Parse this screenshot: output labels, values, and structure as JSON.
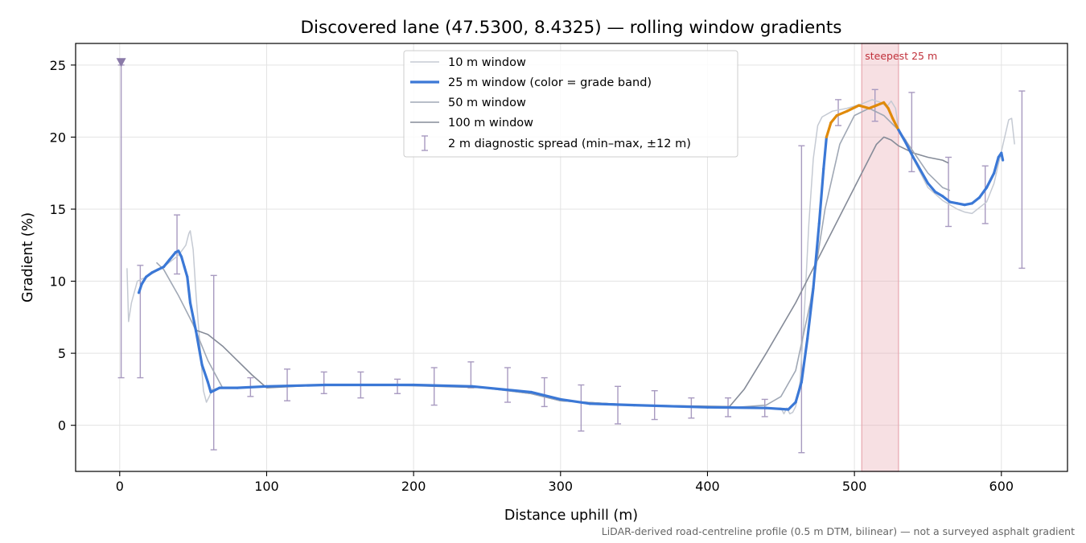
{
  "chart_data": {
    "type": "line",
    "title": "Discovered lane (47.5300, 8.4325) — rolling window gradients",
    "xlabel": "Distance uphill (m)",
    "ylabel": "Gradient (%)",
    "xlim": [
      -30,
      645
    ],
    "ylim": [
      -3.2,
      26.5
    ],
    "xticks": [
      0,
      100,
      200,
      300,
      400,
      500,
      600
    ],
    "yticks": [
      0,
      5,
      10,
      15,
      20,
      25
    ],
    "grid": true,
    "legend_position": "top-center",
    "footnote": "LiDAR-derived road-centreline profile (0.5 m DTM, bilinear) — not a surveyed asphalt gradient",
    "annotation": {
      "label": "steepest 25 m",
      "x_range": [
        505,
        530
      ],
      "color": "#e8a6ae"
    },
    "marker": {
      "x": 1,
      "y": 25.2,
      "symbol": "down-triangle",
      "color": "#8a7aa8"
    },
    "grade_band_colors": {
      "lower": "#3b78d6",
      "steep": "#e08a0a"
    },
    "series": [
      {
        "name": "10 m window",
        "color": "#c5cad3",
        "points": [
          [
            5,
            10.9
          ],
          [
            6,
            7.2
          ],
          [
            8,
            8.5
          ],
          [
            12,
            10.0
          ],
          [
            20,
            10.4
          ],
          [
            30,
            11.0
          ],
          [
            40,
            11.8
          ],
          [
            45,
            12.5
          ],
          [
            47,
            13.3
          ],
          [
            48,
            13.5
          ],
          [
            50,
            12.2
          ],
          [
            52,
            9.0
          ],
          [
            55,
            5.0
          ],
          [
            57,
            2.4
          ],
          [
            59,
            1.6
          ],
          [
            61,
            2.0
          ],
          [
            63,
            2.5
          ],
          [
            70,
            2.6
          ],
          [
            80,
            2.6
          ],
          [
            100,
            2.7
          ],
          [
            140,
            2.8
          ],
          [
            200,
            2.8
          ],
          [
            240,
            2.7
          ],
          [
            280,
            2.2
          ],
          [
            300,
            1.7
          ],
          [
            350,
            1.4
          ],
          [
            400,
            1.3
          ],
          [
            440,
            1.2
          ],
          [
            450,
            1.2
          ],
          [
            452,
            0.8
          ],
          [
            454,
            1.2
          ],
          [
            456,
            0.8
          ],
          [
            458,
            0.9
          ],
          [
            460,
            1.3
          ],
          [
            463,
            3.0
          ],
          [
            466,
            8.0
          ],
          [
            469,
            14.0
          ],
          [
            472,
            18.5
          ],
          [
            475,
            20.8
          ],
          [
            478,
            21.4
          ],
          [
            485,
            21.8
          ],
          [
            495,
            22.0
          ],
          [
            505,
            22.3
          ],
          [
            512,
            22.6
          ],
          [
            518,
            22.4
          ],
          [
            522,
            22.1
          ],
          [
            525,
            22.5
          ],
          [
            528,
            22.0
          ],
          [
            530,
            20.5
          ],
          [
            535,
            19.8
          ],
          [
            540,
            18.5
          ],
          [
            545,
            17.5
          ],
          [
            550,
            16.5
          ],
          [
            560,
            15.6
          ],
          [
            570,
            15.0
          ],
          [
            575,
            14.8
          ],
          [
            580,
            14.7
          ],
          [
            590,
            15.5
          ],
          [
            595,
            16.8
          ],
          [
            600,
            19.0
          ],
          [
            605,
            21.2
          ],
          [
            607,
            21.3
          ],
          [
            609,
            19.5
          ]
        ]
      },
      {
        "name": "25 m window (color = grade band)",
        "color": "#3b78d6",
        "points": [
          [
            13,
            9.2
          ],
          [
            15,
            9.8
          ],
          [
            18,
            10.3
          ],
          [
            22,
            10.6
          ],
          [
            26,
            10.8
          ],
          [
            30,
            11.0
          ],
          [
            34,
            11.5
          ],
          [
            38,
            12.0
          ],
          [
            40,
            12.1
          ],
          [
            42,
            11.7
          ],
          [
            44,
            11.0
          ],
          [
            46,
            10.3
          ],
          [
            48,
            8.5
          ],
          [
            52,
            6.5
          ],
          [
            56,
            4.2
          ],
          [
            60,
            3.0
          ],
          [
            62,
            2.3
          ],
          [
            64,
            2.4
          ],
          [
            68,
            2.6
          ],
          [
            80,
            2.6
          ],
          [
            100,
            2.7
          ],
          [
            140,
            2.8
          ],
          [
            200,
            2.8
          ],
          [
            240,
            2.7
          ],
          [
            280,
            2.3
          ],
          [
            300,
            1.8
          ],
          [
            320,
            1.5
          ],
          [
            350,
            1.4
          ],
          [
            400,
            1.25
          ],
          [
            440,
            1.2
          ],
          [
            455,
            1.1
          ],
          [
            460,
            1.6
          ],
          [
            464,
            3.0
          ],
          [
            468,
            6.0
          ],
          [
            472,
            9.5
          ],
          [
            476,
            14.0
          ],
          [
            479,
            17.8
          ],
          [
            481,
            20.0
          ],
          [
            484,
            21.0
          ],
          [
            488,
            21.5
          ],
          [
            495,
            21.8
          ],
          [
            503,
            22.2
          ],
          [
            510,
            22.0
          ],
          [
            515,
            22.2
          ],
          [
            520,
            22.4
          ],
          [
            523,
            22.0
          ],
          [
            526,
            21.3
          ],
          [
            530,
            20.5
          ],
          [
            535,
            19.6
          ],
          [
            540,
            18.6
          ],
          [
            545,
            17.7
          ],
          [
            550,
            16.8
          ],
          [
            555,
            16.2
          ],
          [
            560,
            15.9
          ],
          [
            565,
            15.5
          ],
          [
            570,
            15.4
          ],
          [
            575,
            15.3
          ],
          [
            580,
            15.4
          ],
          [
            585,
            15.8
          ],
          [
            590,
            16.5
          ],
          [
            595,
            17.5
          ],
          [
            598,
            18.6
          ],
          [
            600,
            18.9
          ],
          [
            601,
            18.4
          ]
        ]
      },
      {
        "name": "50 m window",
        "color": "#a0a8b5",
        "points": [
          [
            25,
            11.3
          ],
          [
            30,
            10.8
          ],
          [
            40,
            9.0
          ],
          [
            50,
            7.0
          ],
          [
            60,
            4.5
          ],
          [
            70,
            2.6
          ],
          [
            80,
            2.6
          ],
          [
            100,
            2.7
          ],
          [
            140,
            2.8
          ],
          [
            200,
            2.8
          ],
          [
            240,
            2.7
          ],
          [
            280,
            2.2
          ],
          [
            300,
            1.7
          ],
          [
            350,
            1.4
          ],
          [
            420,
            1.25
          ],
          [
            440,
            1.4
          ],
          [
            450,
            2.0
          ],
          [
            460,
            3.8
          ],
          [
            470,
            8.5
          ],
          [
            480,
            15.0
          ],
          [
            490,
            19.5
          ],
          [
            500,
            21.5
          ],
          [
            510,
            22.0
          ],
          [
            520,
            21.5
          ],
          [
            530,
            20.5
          ],
          [
            540,
            19.0
          ],
          [
            550,
            17.5
          ],
          [
            560,
            16.5
          ],
          [
            565,
            16.3
          ]
        ]
      },
      {
        "name": "100 m window",
        "color": "#858b98",
        "points": [
          [
            50,
            7.0
          ],
          [
            52,
            6.6
          ],
          [
            60,
            6.3
          ],
          [
            70,
            5.5
          ],
          [
            80,
            4.5
          ],
          [
            90,
            3.5
          ],
          [
            100,
            2.6
          ],
          [
            140,
            2.8
          ],
          [
            200,
            2.75
          ],
          [
            250,
            2.6
          ],
          [
            280,
            2.2
          ],
          [
            300,
            1.7
          ],
          [
            350,
            1.4
          ],
          [
            415,
            1.3
          ],
          [
            425,
            2.5
          ],
          [
            440,
            5.0
          ],
          [
            460,
            8.5
          ],
          [
            480,
            12.5
          ],
          [
            500,
            16.5
          ],
          [
            515,
            19.5
          ],
          [
            520,
            20.0
          ],
          [
            525,
            19.8
          ],
          [
            530,
            19.4
          ],
          [
            540,
            18.9
          ],
          [
            550,
            18.6
          ],
          [
            560,
            18.4
          ],
          [
            564,
            18.2
          ]
        ]
      }
    ],
    "errorbars": {
      "name": "2 m diagnostic spread (min–max, ±12 m)",
      "color": "#a89ac0",
      "bars": [
        {
          "x": 1,
          "low": 3.3,
          "high": 25.0
        },
        {
          "x": 14,
          "low": 3.3,
          "high": 11.1
        },
        {
          "x": 39,
          "low": 10.5,
          "high": 14.6
        },
        {
          "x": 64,
          "low": -1.7,
          "high": 10.4
        },
        {
          "x": 89,
          "low": 2.0,
          "high": 3.3
        },
        {
          "x": 114,
          "low": 1.7,
          "high": 3.9
        },
        {
          "x": 139,
          "low": 2.2,
          "high": 3.7
        },
        {
          "x": 164,
          "low": 1.9,
          "high": 3.7
        },
        {
          "x": 189,
          "low": 2.2,
          "high": 3.2
        },
        {
          "x": 214,
          "low": 1.4,
          "high": 4.0
        },
        {
          "x": 239,
          "low": 2.6,
          "high": 4.4
        },
        {
          "x": 264,
          "low": 1.6,
          "high": 4.0
        },
        {
          "x": 289,
          "low": 1.3,
          "high": 3.3
        },
        {
          "x": 314,
          "low": -0.4,
          "high": 2.8
        },
        {
          "x": 339,
          "low": 0.1,
          "high": 2.7
        },
        {
          "x": 364,
          "low": 0.4,
          "high": 2.4
        },
        {
          "x": 389,
          "low": 0.5,
          "high": 1.9
        },
        {
          "x": 414,
          "low": 0.6,
          "high": 1.9
        },
        {
          "x": 439,
          "low": 0.6,
          "high": 1.8
        },
        {
          "x": 464,
          "low": -1.9,
          "high": 19.4
        },
        {
          "x": 489,
          "low": 20.8,
          "high": 22.6
        },
        {
          "x": 514,
          "low": 21.1,
          "high": 23.3
        },
        {
          "x": 539,
          "low": 17.6,
          "high": 23.1
        },
        {
          "x": 564,
          "low": 13.8,
          "high": 18.6
        },
        {
          "x": 589,
          "low": 14.0,
          "high": 18.0
        },
        {
          "x": 614,
          "low": 10.9,
          "high": 23.2
        }
      ]
    }
  }
}
